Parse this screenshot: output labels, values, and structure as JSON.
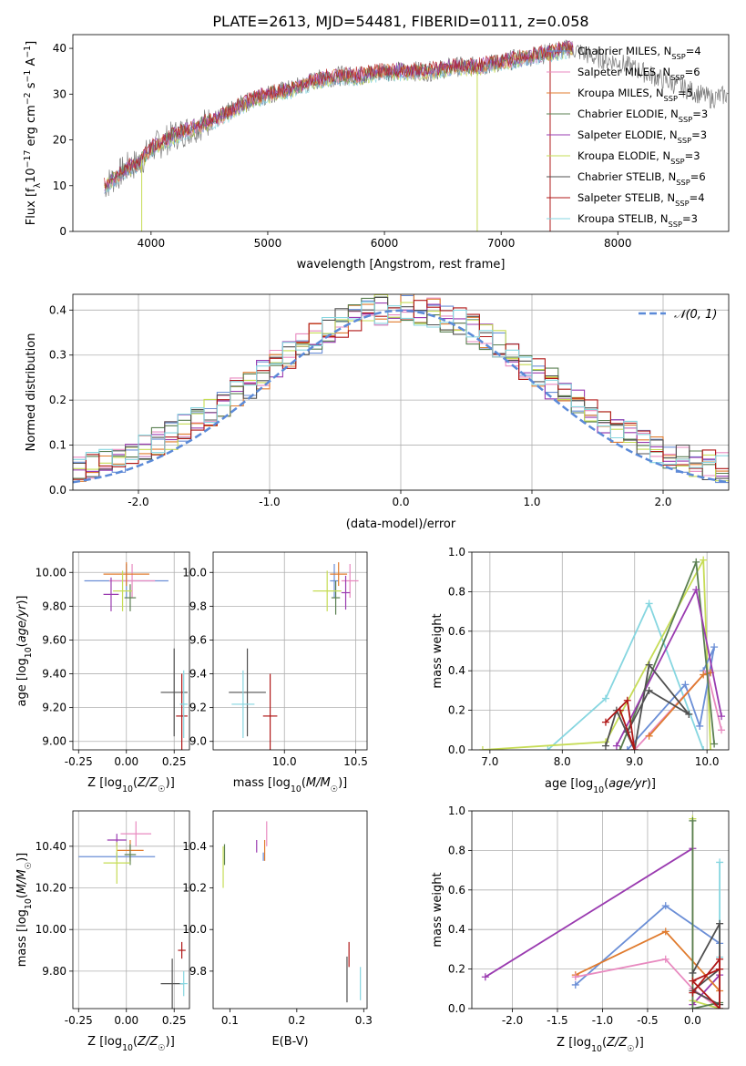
{
  "figure": {
    "title": "PLATE=2613, MJD=54481, FIBERID=0111, z=0.058"
  },
  "colors": {
    "chabrier_miles": "#6a8ed6",
    "salpeter_miles": "#e88ac0",
    "kroupa_miles": "#e07b2e",
    "chabrier_elodie": "#5a7f50",
    "salpeter_elodie": "#9a3bb0",
    "kroupa_elodie": "#c6dc55",
    "chabrier_stelib": "#505050",
    "salpeter_stelib": "#b01818",
    "kroupa_stelib": "#86d6e0",
    "gaussian": "#5b8ad8",
    "grid": "#b0b0b0"
  },
  "chart_data": [
    {
      "id": "spectrum",
      "type": "line",
      "xlabel": "wavelength [Angstrom, rest frame]",
      "ylabel": "Flux [f_λ 10^-17 erg cm^-2 s^-1 A^-1]",
      "xlim": [
        3330,
        8950
      ],
      "ylim": [
        0,
        43
      ],
      "xticks": [
        4000,
        5000,
        6000,
        7000,
        8000
      ],
      "yticks": [
        0,
        10,
        20,
        30,
        40
      ],
      "grid": false,
      "legend_position": "right",
      "observed_flux_anchors": [
        [
          3600,
          10
        ],
        [
          3700,
          12
        ],
        [
          3800,
          14
        ],
        [
          3900,
          15
        ],
        [
          4000,
          18
        ],
        [
          4200,
          21
        ],
        [
          4400,
          23
        ],
        [
          4600,
          25
        ],
        [
          4800,
          28
        ],
        [
          5000,
          30
        ],
        [
          5200,
          31
        ],
        [
          5400,
          33
        ],
        [
          5600,
          34
        ],
        [
          5800,
          34
        ],
        [
          6000,
          35
        ],
        [
          6200,
          35
        ],
        [
          6400,
          35
        ],
        [
          6600,
          36
        ],
        [
          6800,
          36
        ],
        [
          7000,
          37
        ],
        [
          7200,
          38
        ],
        [
          7400,
          39
        ],
        [
          7600,
          40
        ],
        [
          7700,
          39
        ],
        [
          7800,
          38
        ],
        [
          8000,
          37
        ],
        [
          8200,
          35
        ],
        [
          8400,
          33
        ],
        [
          8600,
          31
        ],
        [
          8800,
          29
        ],
        [
          8950,
          30
        ]
      ],
      "model_end_wavelength": 7620,
      "absorption_drops": [
        {
          "x": 3920,
          "y": 0
        },
        {
          "x": 6795,
          "y": 0
        },
        {
          "x": 7420,
          "y": 0
        }
      ],
      "legend": [
        {
          "label": "Chabrier MILES",
          "n": "4",
          "color": "chabrier_miles"
        },
        {
          "label": "Salpeter MILES",
          "n": "6",
          "color": "salpeter_miles"
        },
        {
          "label": "Kroupa MILES",
          "n": "5",
          "color": "kroupa_miles"
        },
        {
          "label": "Chabrier ELODIE",
          "n": "3",
          "color": "chabrier_elodie"
        },
        {
          "label": "Salpeter ELODIE",
          "n": "3",
          "color": "salpeter_elodie"
        },
        {
          "label": "Kroupa ELODIE",
          "n": "3",
          "color": "kroupa_elodie"
        },
        {
          "label": "Chabrier STELIB",
          "n": "6",
          "color": "chabrier_stelib"
        },
        {
          "label": "Salpeter STELIB",
          "n": "4",
          "color": "salpeter_stelib"
        },
        {
          "label": "Kroupa STELIB",
          "n": "3",
          "color": "kroupa_stelib"
        }
      ]
    },
    {
      "id": "residuals",
      "type": "line",
      "xlabel": "(data-model)/error",
      "ylabel": "Normed distribution",
      "xlim": [
        -2.5,
        2.5
      ],
      "ylim": [
        0,
        0.435
      ],
      "xticks": [
        -2,
        -1,
        0,
        1,
        2
      ],
      "yticks": [
        0.0,
        0.1,
        0.2,
        0.3,
        0.4
      ],
      "grid": true,
      "legend_position": "top-right",
      "legend": [
        {
          "label": "𝒩(0, 1)",
          "color": "gaussian",
          "style": "dashed"
        }
      ],
      "bin_width": 0.1,
      "gaussian": {
        "mu": 0,
        "sigma": 1
      }
    },
    {
      "id": "z-age",
      "type": "scatter",
      "xlabel": "Z [log₁₀(Z/Z☉)]",
      "ylabel": "age [log₁₀(age/yr)]",
      "xlim": [
        -0.28,
        0.33
      ],
      "ylim": [
        8.95,
        10.12
      ],
      "xticks": [
        -0.25,
        0.0,
        0.25
      ],
      "yticks": [
        9.0,
        9.2,
        9.4,
        9.6,
        9.8,
        10.0
      ],
      "grid": true,
      "points": [
        {
          "color": "chabrier_miles",
          "x": 0.0,
          "xerr": 0.22,
          "y": 9.95,
          "yerr": 0.1
        },
        {
          "color": "salpeter_miles",
          "x": 0.03,
          "xerr": 0.12,
          "y": 9.95,
          "yerr": 0.1
        },
        {
          "color": "kroupa_miles",
          "x": 0.0,
          "xerr": 0.12,
          "y": 9.99,
          "yerr": 0.07
        },
        {
          "color": "chabrier_elodie",
          "x": 0.02,
          "xerr": 0.03,
          "y": 9.85,
          "yerr": 0.08
        },
        {
          "color": "salpeter_elodie",
          "x": -0.08,
          "xerr": 0.04,
          "y": 9.87,
          "yerr": 0.1
        },
        {
          "color": "kroupa_elodie",
          "x": -0.02,
          "xerr": 0.05,
          "y": 9.89,
          "yerr": 0.12
        },
        {
          "color": "chabrier_stelib",
          "x": 0.25,
          "xerr": 0.07,
          "y": 9.29,
          "yerr": 0.26
        },
        {
          "color": "salpeter_stelib",
          "x": 0.29,
          "xerr": 0.03,
          "y": 9.15,
          "yerr": 0.25
        },
        {
          "color": "kroupa_stelib",
          "x": 0.3,
          "xerr": 0.02,
          "y": 9.22,
          "yerr": 0.2
        }
      ]
    },
    {
      "id": "mass-age",
      "type": "scatter",
      "xlabel": "mass [log₁₀(M/M☉)]",
      "ylabel": "",
      "xlim": [
        9.5,
        10.58
      ],
      "ylim": [
        8.95,
        10.12
      ],
      "xticks": [
        10.0,
        10.5
      ],
      "yticks": [
        9.0,
        9.2,
        9.4,
        9.6,
        9.8,
        10.0
      ],
      "grid": true,
      "points": [
        {
          "color": "chabrier_miles",
          "x": 10.35,
          "xerr": 0.03,
          "y": 9.95,
          "yerr": 0.1
        },
        {
          "color": "salpeter_miles",
          "x": 10.46,
          "xerr": 0.06,
          "y": 9.95,
          "yerr": 0.1
        },
        {
          "color": "kroupa_miles",
          "x": 10.38,
          "xerr": 0.06,
          "y": 9.99,
          "yerr": 0.07
        },
        {
          "color": "chabrier_elodie",
          "x": 10.36,
          "xerr": 0.03,
          "y": 9.85,
          "yerr": 0.1
        },
        {
          "color": "salpeter_elodie",
          "x": 10.43,
          "xerr": 0.03,
          "y": 9.88,
          "yerr": 0.1
        },
        {
          "color": "kroupa_elodie",
          "x": 10.3,
          "xerr": 0.1,
          "y": 9.89,
          "yerr": 0.12
        },
        {
          "color": "chabrier_stelib",
          "x": 9.74,
          "xerr": 0.13,
          "y": 9.29,
          "yerr": 0.26
        },
        {
          "color": "salpeter_stelib",
          "x": 9.9,
          "xerr": 0.05,
          "y": 9.15,
          "yerr": 0.25
        },
        {
          "color": "kroupa_stelib",
          "x": 9.71,
          "xerr": 0.08,
          "y": 9.22,
          "yerr": 0.2
        }
      ]
    },
    {
      "id": "age-weight",
      "type": "line",
      "xlabel": "age [log₁₀(age/yr)]",
      "ylabel": "mass weight",
      "xlim": [
        6.75,
        10.3
      ],
      "ylim": [
        0,
        1.0
      ],
      "xticks": [
        7,
        8,
        9,
        10
      ],
      "yticks": [
        0.0,
        0.2,
        0.4,
        0.6,
        0.8,
        1.0
      ],
      "grid": true,
      "series": [
        {
          "color": "kroupa_stelib",
          "points": [
            [
              7.8,
              0.0
            ],
            [
              8.6,
              0.26
            ],
            [
              9.2,
              0.74
            ],
            [
              9.95,
              0.0
            ]
          ]
        },
        {
          "color": "kroupa_elodie",
          "points": [
            [
              6.9,
              0.0
            ],
            [
              8.6,
              0.04
            ],
            [
              9.95,
              0.96
            ],
            [
              10.05,
              0.0
            ]
          ]
        },
        {
          "color": "chabrier_miles",
          "points": [
            [
              8.9,
              0.0
            ],
            [
              9.7,
              0.33
            ],
            [
              9.9,
              0.12
            ],
            [
              10.1,
              0.52
            ],
            [
              9.95,
              0.4
            ]
          ]
        },
        {
          "color": "salpeter_miles",
          "points": [
            [
              9.0,
              0.0
            ],
            [
              10.0,
              0.4
            ],
            [
              10.2,
              0.1
            ]
          ]
        },
        {
          "color": "kroupa_miles",
          "points": [
            [
              9.2,
              0.07
            ],
            [
              9.95,
              0.38
            ],
            [
              10.05,
              0.39
            ]
          ]
        },
        {
          "color": "chabrier_elodie",
          "points": [
            [
              8.8,
              0.0
            ],
            [
              9.85,
              0.95
            ],
            [
              10.1,
              0.03
            ]
          ]
        },
        {
          "color": "salpeter_elodie",
          "points": [
            [
              8.75,
              0.02
            ],
            [
              9.85,
              0.81
            ],
            [
              10.2,
              0.17
            ]
          ]
        },
        {
          "color": "chabrier_stelib",
          "points": [
            [
              8.6,
              0.02
            ],
            [
              8.75,
              0.2
            ],
            [
              9.0,
              0.0
            ],
            [
              9.2,
              0.43
            ],
            [
              9.75,
              0.18
            ],
            [
              9.2,
              0.3
            ],
            [
              8.9,
              0.09
            ]
          ]
        },
        {
          "color": "salpeter_stelib",
          "points": [
            [
              8.6,
              0.14
            ],
            [
              8.9,
              0.25
            ],
            [
              9.0,
              0.0
            ],
            [
              8.8,
              0.2
            ]
          ]
        }
      ]
    },
    {
      "id": "z-mass",
      "type": "scatter",
      "xlabel": "Z [log₁₀(Z/Z☉)]",
      "ylabel": "mass [log₁₀(M/M☉)]",
      "xlim": [
        -0.28,
        0.33
      ],
      "ylim": [
        9.62,
        10.57
      ],
      "xticks": [
        -0.25,
        0.0,
        0.25
      ],
      "yticks": [
        9.8,
        10.0,
        10.2,
        10.4
      ],
      "grid": true,
      "points": [
        {
          "color": "chabrier_miles",
          "x": -0.05,
          "xerr": 0.2,
          "y": 10.35,
          "yerr": 0.02
        },
        {
          "color": "salpeter_miles",
          "x": 0.05,
          "xerr": 0.08,
          "y": 10.46,
          "yerr": 0.06
        },
        {
          "color": "kroupa_miles",
          "x": 0.02,
          "xerr": 0.07,
          "y": 10.38,
          "yerr": 0.05
        },
        {
          "color": "chabrier_elodie",
          "x": 0.02,
          "xerr": 0.03,
          "y": 10.36,
          "yerr": 0.05
        },
        {
          "color": "salpeter_elodie",
          "x": -0.05,
          "xerr": 0.05,
          "y": 10.43,
          "yerr": 0.03
        },
        {
          "color": "kroupa_elodie",
          "x": -0.05,
          "xerr": 0.07,
          "y": 10.32,
          "yerr": 0.1
        },
        {
          "color": "chabrier_stelib",
          "x": 0.24,
          "xerr": 0.06,
          "y": 9.74,
          "yerr": 0.12
        },
        {
          "color": "salpeter_stelib",
          "x": 0.29,
          "xerr": 0.02,
          "y": 9.9,
          "yerr": 0.04
        },
        {
          "color": "kroupa_stelib",
          "x": 0.3,
          "xerr": 0.02,
          "y": 9.74,
          "yerr": 0.06
        }
      ]
    },
    {
      "id": "ebv-mass",
      "type": "scatter",
      "xlabel": "E(B-V)",
      "ylabel": "",
      "xlim": [
        0.075,
        0.305
      ],
      "ylim": [
        9.62,
        10.57
      ],
      "xticks": [
        0.1,
        0.2,
        0.3
      ],
      "yticks": [
        9.8,
        10.0,
        10.2,
        10.4
      ],
      "grid": false,
      "points": [
        {
          "color": "chabrier_miles",
          "x": 0.15,
          "y": 10.35,
          "yerr": 0.02
        },
        {
          "color": "salpeter_miles",
          "x": 0.155,
          "y": 10.46,
          "yerr": 0.06
        },
        {
          "color": "kroupa_miles",
          "x": 0.152,
          "y": 10.38,
          "yerr": 0.05
        },
        {
          "color": "chabrier_elodie",
          "x": 0.092,
          "y": 10.36,
          "yerr": 0.05
        },
        {
          "color": "salpeter_elodie",
          "x": 0.14,
          "y": 10.4,
          "yerr": 0.03
        },
        {
          "color": "kroupa_elodie",
          "x": 0.09,
          "y": 10.3,
          "yerr": 0.1
        },
        {
          "color": "chabrier_stelib",
          "x": 0.275,
          "y": 9.76,
          "yerr": 0.11
        },
        {
          "color": "salpeter_stelib",
          "x": 0.278,
          "y": 9.88,
          "yerr": 0.06
        },
        {
          "color": "kroupa_stelib",
          "x": 0.295,
          "y": 9.74,
          "yerr": 0.08
        }
      ]
    },
    {
      "id": "z-weight",
      "type": "line",
      "xlabel": "Z [log₁₀(Z/Z☉)]",
      "ylabel": "mass weight",
      "xlim": [
        -2.45,
        0.4
      ],
      "ylim": [
        0,
        1.0
      ],
      "xticks": [
        -2.0,
        -1.5,
        -1.0,
        -0.5,
        0.0
      ],
      "yticks": [
        0.0,
        0.2,
        0.4,
        0.6,
        0.8,
        1.0
      ],
      "grid": true,
      "series": [
        {
          "color": "salpeter_elodie",
          "points": [
            [
              -2.3,
              0.16
            ],
            [
              0.0,
              0.81
            ],
            [
              0.0,
              0.02
            ],
            [
              0.3,
              0.17
            ]
          ]
        },
        {
          "color": "chabrier_miles",
          "points": [
            [
              -1.3,
              0.12
            ],
            [
              -0.3,
              0.52
            ],
            [
              0.3,
              0.33
            ]
          ]
        },
        {
          "color": "kroupa_miles",
          "points": [
            [
              -1.3,
              0.17
            ],
            [
              -0.3,
              0.39
            ],
            [
              0.3,
              0.09
            ]
          ]
        },
        {
          "color": "salpeter_miles",
          "points": [
            [
              -1.3,
              0.16
            ],
            [
              -0.3,
              0.25
            ],
            [
              0.0,
              0.1
            ],
            [
              0.3,
              0.0
            ]
          ]
        },
        {
          "color": "kroupa_elodie",
          "points": [
            [
              0.0,
              0.96
            ],
            [
              0.0,
              0.04
            ],
            [
              0.3,
              0.0
            ]
          ]
        },
        {
          "color": "chabrier_elodie",
          "points": [
            [
              0.0,
              0.95
            ],
            [
              0.0,
              0.0
            ],
            [
              0.3,
              0.03
            ]
          ]
        },
        {
          "color": "kroupa_stelib",
          "points": [
            [
              0.3,
              0.74
            ],
            [
              0.3,
              0.0
            ],
            [
              0.3,
              0.26
            ]
          ]
        },
        {
          "color": "chabrier_stelib",
          "points": [
            [
              0.0,
              0.18
            ],
            [
              0.3,
              0.43
            ],
            [
              0.3,
              0.02
            ],
            [
              0.0,
              0.09
            ],
            [
              0.3,
              0.2
            ]
          ]
        },
        {
          "color": "salpeter_stelib",
          "points": [
            [
              0.0,
              0.08
            ],
            [
              0.3,
              0.25
            ],
            [
              0.3,
              0.0
            ],
            [
              0.0,
              0.14
            ],
            [
              0.3,
              0.2
            ]
          ]
        }
      ]
    }
  ]
}
